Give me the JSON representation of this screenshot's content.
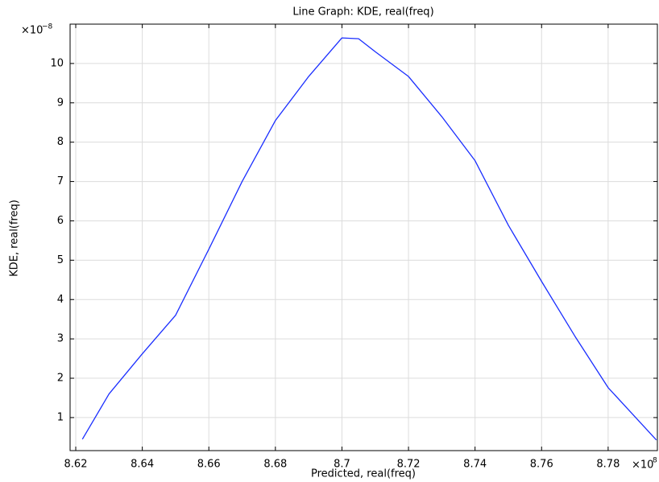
{
  "chart_data": {
    "type": "line",
    "title": "Line Graph: KDE, real(freq)",
    "x_label": "Predicted, real(freq)",
    "y_label": "KDE, real(freq)",
    "x_multiplier": "×10",
    "x_multiplier_exponent": "8",
    "y_multiplier": "×10",
    "y_multiplier_exponent": "−8",
    "x": [
      8.622,
      8.63,
      8.64,
      8.65,
      8.66,
      8.67,
      8.68,
      8.69,
      8.7,
      8.705,
      8.71,
      8.72,
      8.73,
      8.74,
      8.75,
      8.76,
      8.77,
      8.78,
      8.7945
    ],
    "values": [
      0.45,
      1.6,
      2.62,
      3.6,
      5.28,
      7.0,
      8.55,
      9.67,
      10.65,
      10.63,
      10.3,
      9.67,
      8.65,
      7.53,
      5.89,
      4.46,
      3.07,
      1.76,
      0.43
    ],
    "color": "#1a2eff",
    "xlim": [
      8.6183,
      8.7948
    ],
    "ylim": [
      0.16,
      11.0
    ],
    "xticks": [
      8.62,
      8.64,
      8.66,
      8.68,
      8.7,
      8.72,
      8.74,
      8.76,
      8.78
    ],
    "yticks": [
      1,
      2,
      3,
      4,
      5,
      6,
      7,
      8,
      9,
      10
    ],
    "grid": true
  }
}
